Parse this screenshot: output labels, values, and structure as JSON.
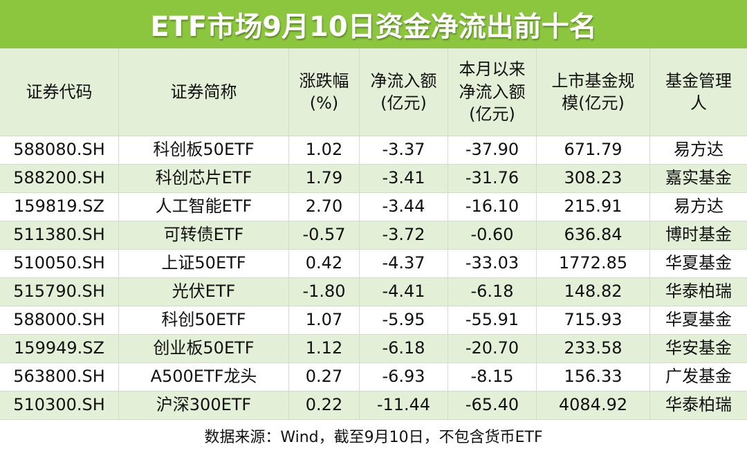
{
  "title": "ETF市场9月10日资金净流出前十名",
  "table": {
    "header": [
      [
        "证券代码"
      ],
      [
        "证券简称"
      ],
      [
        "涨跌幅",
        "(%)"
      ],
      [
        "净流入额",
        "(亿元)"
      ],
      [
        "本月以来",
        "净流入额",
        "(亿元)"
      ],
      [
        "上市基金规",
        "模(亿元)"
      ],
      [
        "基金管理",
        "人"
      ]
    ],
    "rows": [
      [
        "588080.SH",
        "科创板50ETF",
        "1.02",
        "-3.37",
        "-37.90",
        "671.79",
        "易方达"
      ],
      [
        "588200.SH",
        "科创芯片ETF",
        "1.79",
        "-3.41",
        "-31.76",
        "308.23",
        "嘉实基金"
      ],
      [
        "159819.SZ",
        "人工智能ETF",
        "2.70",
        "-3.44",
        "-16.10",
        "215.91",
        "易方达"
      ],
      [
        "511380.SH",
        "可转债ETF",
        "-0.57",
        "-3.72",
        "-0.60",
        "636.84",
        "博时基金"
      ],
      [
        "510050.SH",
        "上证50ETF",
        "0.42",
        "-4.37",
        "-33.03",
        "1772.85",
        "华夏基金"
      ],
      [
        "515790.SH",
        "光伏ETF",
        "-1.80",
        "-4.41",
        "-6.18",
        "148.82",
        "华泰柏瑞"
      ],
      [
        "588000.SH",
        "科创50ETF",
        "1.07",
        "-5.95",
        "-55.91",
        "715.93",
        "华夏基金"
      ],
      [
        "159949.SZ",
        "创业板50ETF",
        "1.12",
        "-6.18",
        "-20.70",
        "233.58",
        "华安基金"
      ],
      [
        "563800.SH",
        "A500ETF龙头",
        "0.27",
        "-6.93",
        "-8.15",
        "156.33",
        "广发基金"
      ],
      [
        "510300.SH",
        "沪深300ETF",
        "0.22",
        "-11.44",
        "-65.40",
        "4084.92",
        "华泰柏瑞"
      ]
    ]
  },
  "footer": "数据来源：Wind，截至9月10日，不包含货币ETF"
}
